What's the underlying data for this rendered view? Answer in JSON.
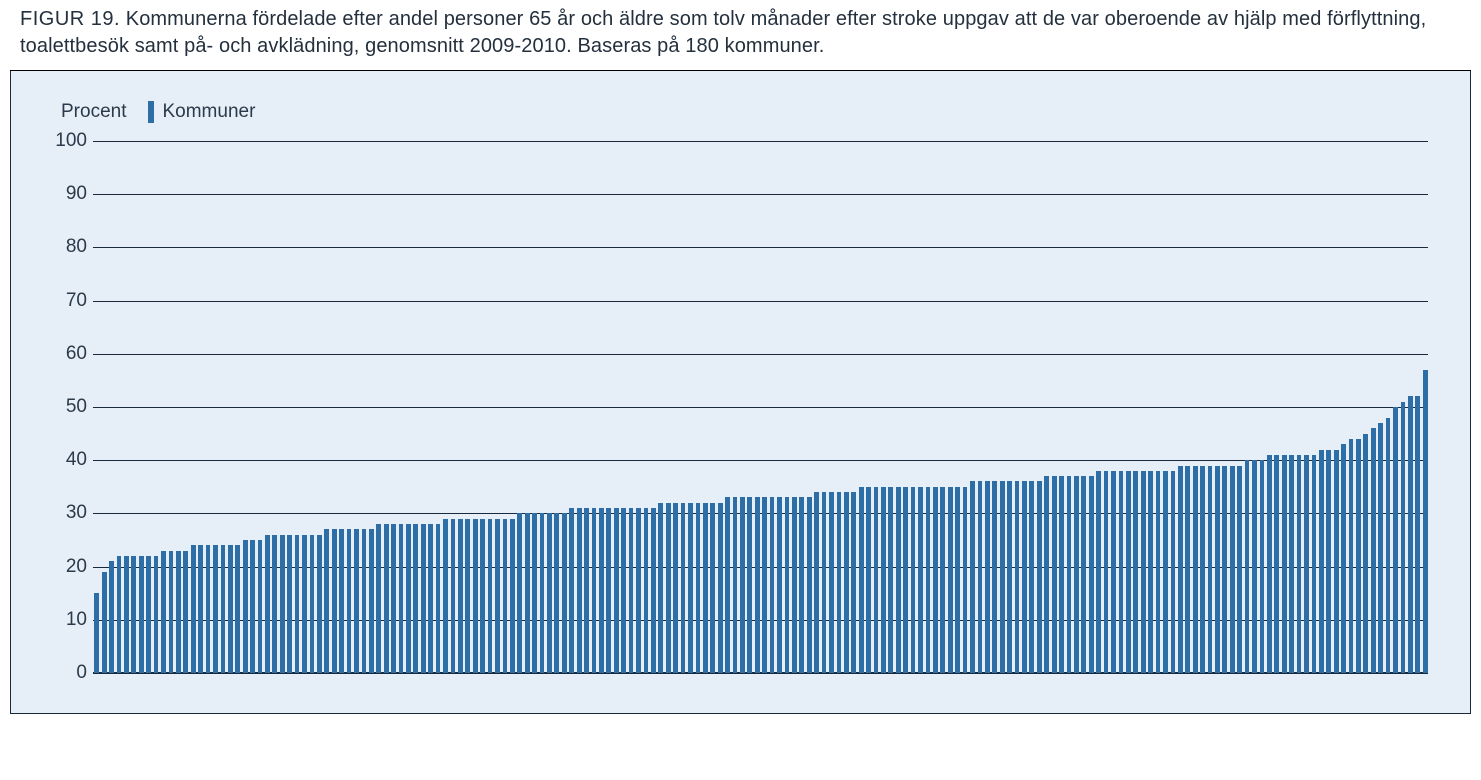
{
  "caption": {
    "label": "FIGUR 19.",
    "text": "Kommunerna fördelade efter andel personer 65 år och äldre som tolv månader efter stroke uppgav att de var oberoende av hjälp med förflyttning, toalettbesök samt på- och avklädning, genomsnitt 2009-2010. Baseras på 180 kommuner."
  },
  "legend": {
    "ylabel": "Procent",
    "series_label": "Kommuner"
  },
  "chart": {
    "type": "bar",
    "background_color": "#e6eff7",
    "bar_color": "#2c6ea5",
    "grid_color": "#1a2a3a",
    "border_color": "#1a2a3a",
    "text_color": "#2b3a4a",
    "tick_fontsize": 19,
    "legend_fontsize": 19,
    "caption_fontsize": 20,
    "ylim": [
      0,
      100
    ],
    "ytick_step": 10,
    "yticks": [
      0,
      10,
      20,
      30,
      40,
      50,
      60,
      70,
      80,
      90,
      100
    ],
    "bar_width_ratio": 0.64,
    "n_bars": 180,
    "values": [
      15,
      19,
      21,
      22,
      22,
      22,
      22,
      22,
      22,
      23,
      23,
      23,
      23,
      24,
      24,
      24,
      24,
      24,
      24,
      24,
      25,
      25,
      25,
      26,
      26,
      26,
      26,
      26,
      26,
      26,
      26,
      27,
      27,
      27,
      27,
      27,
      27,
      27,
      28,
      28,
      28,
      28,
      28,
      28,
      28,
      28,
      28,
      29,
      29,
      29,
      29,
      29,
      29,
      29,
      29,
      29,
      29,
      30,
      30,
      30,
      30,
      30,
      30,
      30,
      31,
      31,
      31,
      31,
      31,
      31,
      31,
      31,
      31,
      31,
      31,
      31,
      32,
      32,
      32,
      32,
      32,
      32,
      32,
      32,
      32,
      33,
      33,
      33,
      33,
      33,
      33,
      33,
      33,
      33,
      33,
      33,
      33,
      34,
      34,
      34,
      34,
      34,
      34,
      35,
      35,
      35,
      35,
      35,
      35,
      35,
      35,
      35,
      35,
      35,
      35,
      35,
      35,
      35,
      36,
      36,
      36,
      36,
      36,
      36,
      36,
      36,
      36,
      36,
      37,
      37,
      37,
      37,
      37,
      37,
      37,
      38,
      38,
      38,
      38,
      38,
      38,
      38,
      38,
      38,
      38,
      38,
      39,
      39,
      39,
      39,
      39,
      39,
      39,
      39,
      39,
      40,
      40,
      40,
      41,
      41,
      41,
      41,
      41,
      41,
      41,
      42,
      42,
      42,
      43,
      44,
      44,
      45,
      46,
      47,
      48,
      50,
      51,
      52,
      52,
      57
    ]
  }
}
